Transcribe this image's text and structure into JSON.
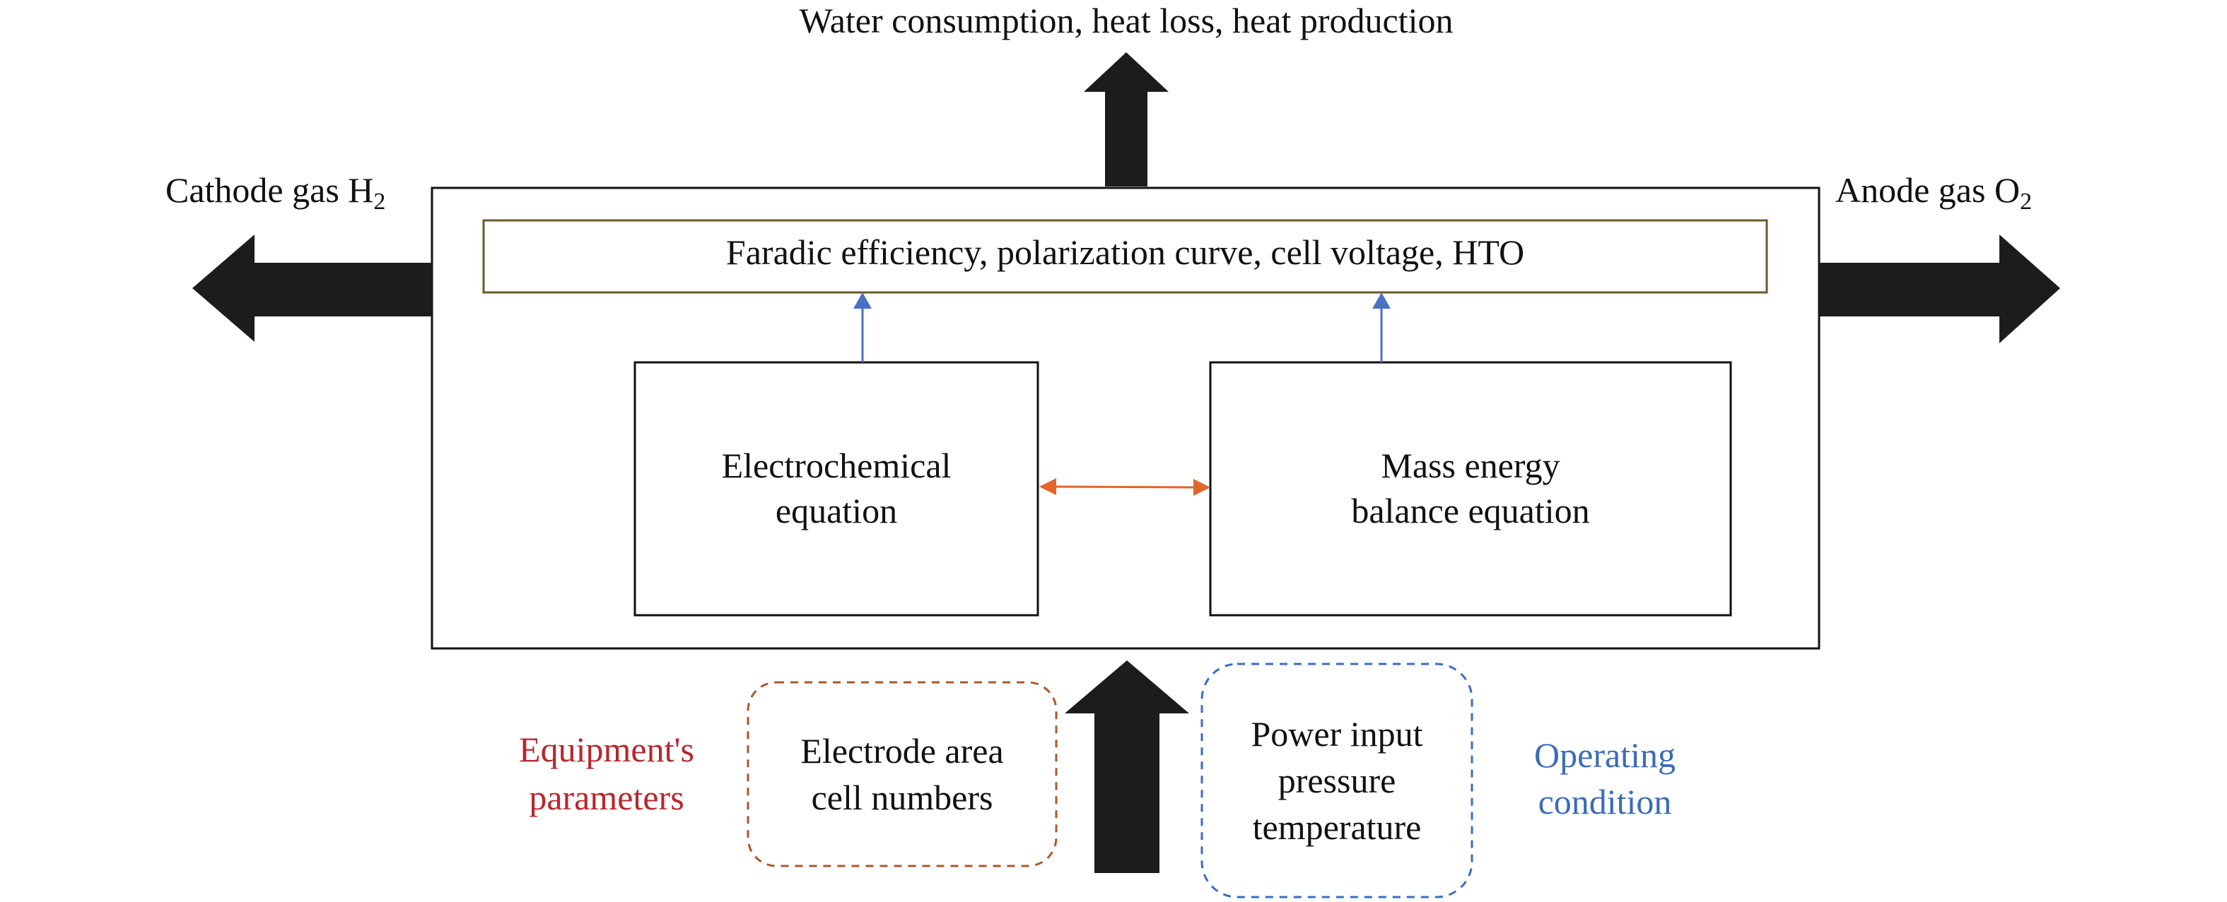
{
  "top_output": "Water consumption, heat loss, heat production",
  "cathode": {
    "label": "Cathode gas H",
    "subscript": "2"
  },
  "anode": {
    "label": "Anode gas O",
    "subscript": "2"
  },
  "result_bar": "Faradic efficiency, polarization curve, cell voltage, HTO",
  "electrochemical": {
    "line1": "Electrochemical",
    "line2": "equation"
  },
  "mass_energy": {
    "line1": "Mass energy",
    "line2": "balance equation"
  },
  "equipment": {
    "label_line1": "Equipment's",
    "label_line2": "parameters",
    "box_line1": "Electrode area",
    "box_line2": "cell numbers"
  },
  "operating": {
    "label_line1": "Operating",
    "label_line2": "condition",
    "box_line1": "Power input",
    "box_line2": "pressure",
    "box_line3": "temperature"
  },
  "colors": {
    "arrow_fill": "#1c1c1c",
    "orange_link": "#e0662c",
    "blue_link": "#4a72c4",
    "equipment_text": "#b5272d",
    "operating_text": "#3a6cb7",
    "equipment_dash": "#b0542a",
    "operating_dash": "#3b6cc1",
    "result_bar_border": "#6b5a2a"
  }
}
